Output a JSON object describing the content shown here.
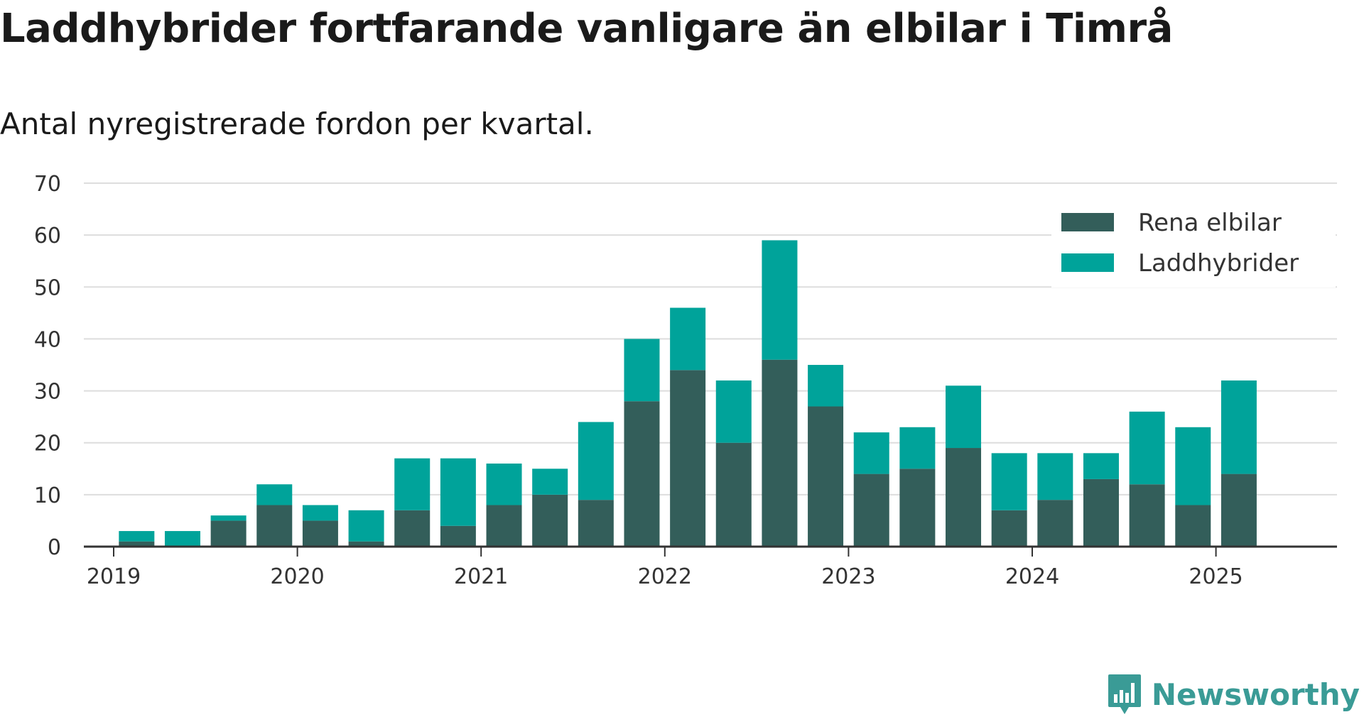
{
  "title": "Laddhybrider fortfarande vanligare än elbilar i Timrå",
  "subtitle": "Antal nyregistrerade fordon per kvartal.",
  "brand": {
    "name": "Newsworthy",
    "icon": "newsworthy-logo-icon"
  },
  "chart_data": {
    "type": "bar",
    "stacked": true,
    "x_tick_labels": [
      "2019",
      "2020",
      "2021",
      "2022",
      "2023",
      "2024",
      "2025"
    ],
    "categories": [
      "2019 Q1",
      "2019 Q2",
      "2019 Q3",
      "2019 Q4",
      "2020 Q1",
      "2020 Q2",
      "2020 Q3",
      "2020 Q4",
      "2021 Q1",
      "2021 Q2",
      "2021 Q3",
      "2021 Q4",
      "2022 Q1",
      "2022 Q2",
      "2022 Q3",
      "2022 Q4",
      "2023 Q1",
      "2023 Q2",
      "2023 Q3",
      "2023 Q4",
      "2024 Q1",
      "2024 Q2",
      "2024 Q3",
      "2024 Q4",
      "2025 Q1",
      "2025 Q2"
    ],
    "series": [
      {
        "name": "Rena elbilar",
        "color": "#335e5a",
        "values": [
          1,
          0,
          5,
          8,
          5,
          1,
          7,
          4,
          8,
          10,
          9,
          28,
          34,
          20,
          36,
          27,
          14,
          15,
          19,
          7,
          9,
          13,
          12,
          8,
          14,
          0
        ]
      },
      {
        "name": "Laddhybrider",
        "color": "#00a39a",
        "values": [
          2,
          3,
          1,
          4,
          3,
          6,
          10,
          13,
          8,
          5,
          15,
          12,
          12,
          12,
          23,
          8,
          8,
          8,
          12,
          11,
          9,
          5,
          14,
          15,
          18,
          0
        ]
      }
    ],
    "ylim": [
      0,
      70
    ],
    "yticks": [
      0,
      10,
      20,
      30,
      40,
      50,
      60,
      70
    ],
    "grid": true,
    "legend_position": "top-right"
  }
}
